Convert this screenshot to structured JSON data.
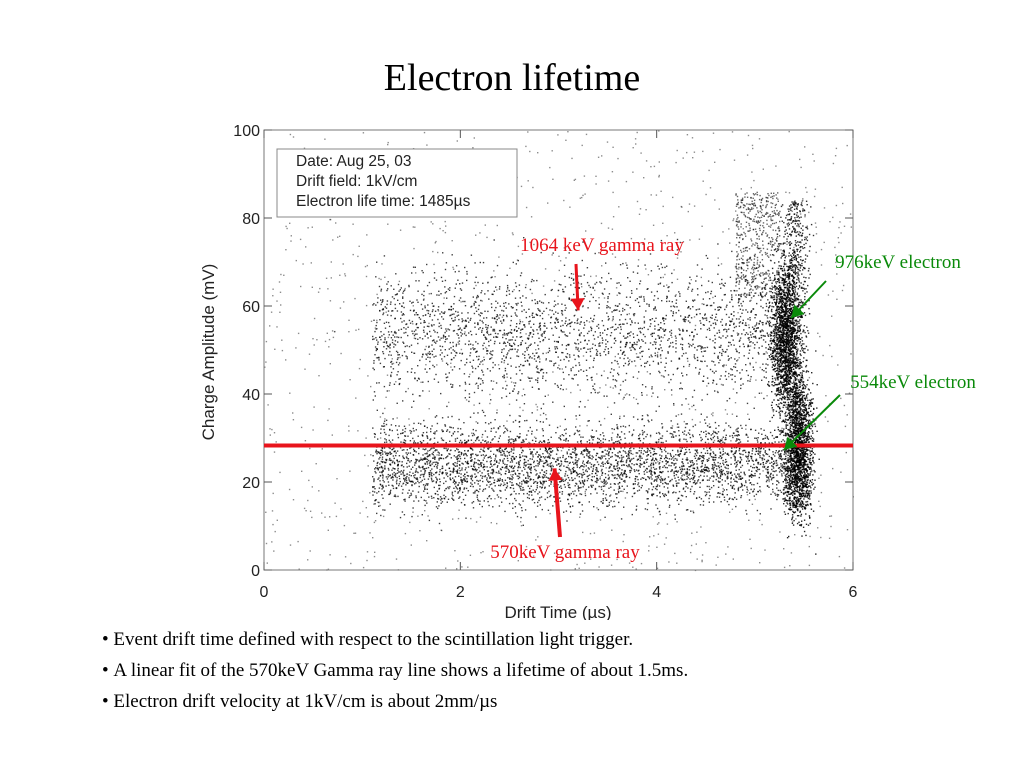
{
  "title": "Electron lifetime",
  "chart_data": {
    "type": "scatter",
    "xlabel": "Drift Time (µs)",
    "ylabel": "Charge Amplitude (mV)",
    "xlim": [
      0,
      6
    ],
    "ylim": [
      0,
      100
    ],
    "xticks": [
      "0",
      "2",
      "4",
      "6"
    ],
    "yticks": [
      "0",
      "20",
      "40",
      "60",
      "80",
      "100"
    ],
    "grid": false,
    "legend_box": [
      "Date: Aug 25, 03",
      "Drift field: 1kV/cm",
      "Electron life time: 1485µs"
    ],
    "fit_line": {
      "x": [
        0,
        6
      ],
      "y": [
        28.3,
        28.3
      ],
      "color": "#e8141c"
    },
    "series": [
      {
        "label": "1064 keV gamma ray",
        "x_range": [
          1.1,
          5.4
        ],
        "y_center": 56,
        "y_spread": 12
      },
      {
        "label": "570keV gamma ray",
        "x_range": [
          1.1,
          5.4
        ],
        "y_center": 25,
        "y_spread": 8
      },
      {
        "label": "976keV electron",
        "x": 5.3,
        "y_center": 53,
        "y_spread": 8
      },
      {
        "label": "554keV electron",
        "x": 5.45,
        "y_center": 28,
        "y_spread": 8
      }
    ],
    "annotations": [
      {
        "text": "1064 keV gamma ray",
        "color": "#e8141c",
        "arrow_to": [
          3.2,
          59
        ]
      },
      {
        "text": "976keV electron",
        "color": "#0a8a0a",
        "arrow_to": [
          5.35,
          55
        ]
      },
      {
        "text": "554keV electron",
        "color": "#0a8a0a",
        "arrow_to": [
          5.5,
          30
        ]
      },
      {
        "text": "570keV gamma ray",
        "color": "#e8141c",
        "arrow_to": [
          3.0,
          24
        ]
      }
    ]
  },
  "bullets": [
    "Event drift time defined with respect to the scintillation light trigger.",
    "A linear fit of the 570keV Gamma ray line shows a lifetime of about 1.5ms.",
    "Electron drift velocity at 1kV/cm is about 2mm/µs"
  ]
}
